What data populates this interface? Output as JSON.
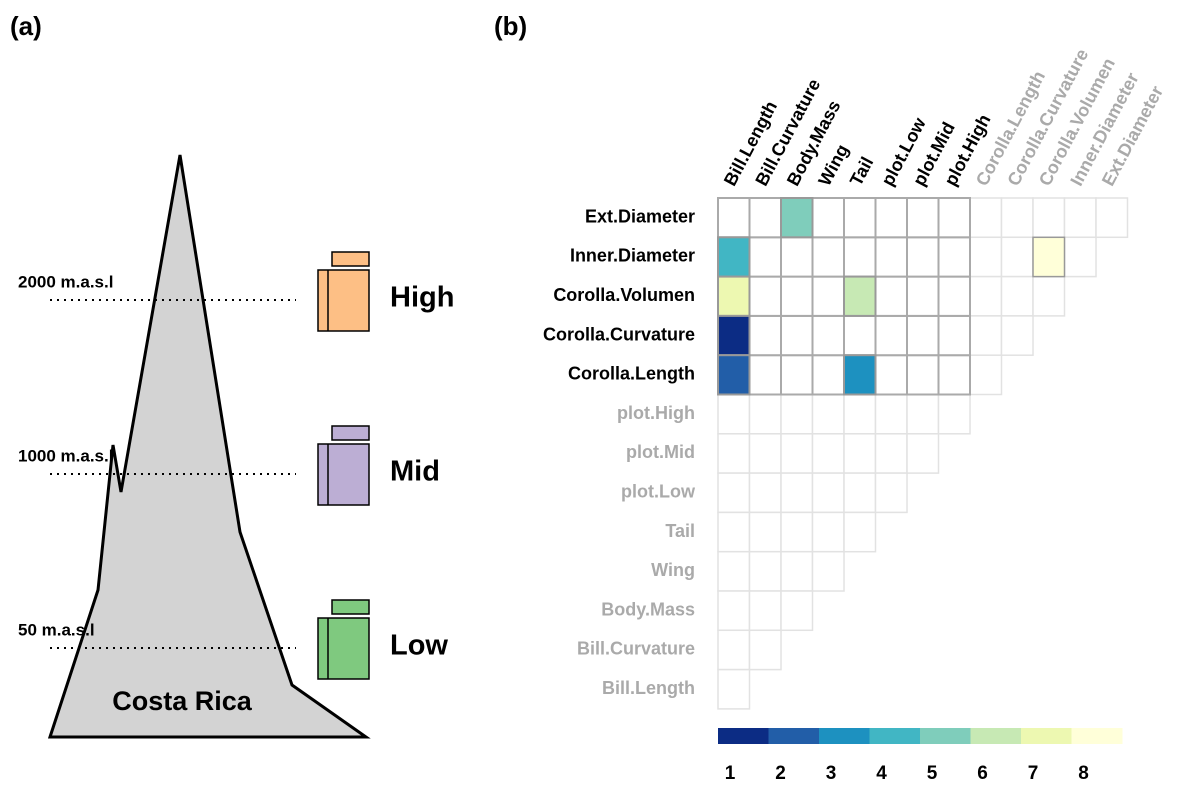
{
  "panel_a": {
    "label": "(a)",
    "region": "Costa Rica",
    "zones": [
      {
        "altitude": "2000 m.a.s.l",
        "name": "High",
        "color": "#fdbf85"
      },
      {
        "altitude": "1000 m.a.s.l",
        "name": "Mid",
        "color": "#bcaed4"
      },
      {
        "altitude": "50 m.a.s.l",
        "name": "Low",
        "color": "#7fc97f"
      }
    ]
  },
  "panel_b": {
    "label": "(b)",
    "columns": [
      "Bill.Length",
      "Bill.Curvature",
      "Body.Mass",
      "Wing",
      "Tail",
      "plot.Low",
      "plot.Mid",
      "plot.High",
      "Corolla.Length",
      "Corolla.Curvature",
      "Corolla.Volumen",
      "Inner.Diameter",
      "Ext.Diameter"
    ],
    "rows": [
      "Ext.Diameter",
      "Inner.Diameter",
      "Corolla.Volumen",
      "Corolla.Curvature",
      "Corolla.Length",
      "plot.High",
      "plot.Mid",
      "plot.Low",
      "Tail",
      "Wing",
      "Body.Mass",
      "Bill.Curvature",
      "Bill.Length"
    ],
    "values": [
      [
        null,
        null,
        5,
        null,
        null,
        null,
        null,
        null,
        null,
        null,
        null,
        null,
        null
      ],
      [
        4,
        null,
        null,
        null,
        null,
        null,
        null,
        null,
        null,
        null,
        8,
        null
      ],
      [
        7,
        null,
        null,
        null,
        6,
        null,
        null,
        null,
        null,
        null,
        null
      ],
      [
        1,
        null,
        null,
        null,
        null,
        null,
        null,
        null,
        null,
        null
      ],
      [
        2,
        null,
        null,
        null,
        3,
        null,
        null,
        null,
        null
      ],
      [
        null,
        null,
        null,
        null,
        null,
        null,
        null,
        null
      ],
      [
        null,
        null,
        null,
        null,
        null,
        null,
        null
      ],
      [
        null,
        null,
        null,
        null,
        null,
        null
      ],
      [
        null,
        null,
        null,
        null,
        null
      ],
      [
        null,
        null,
        null,
        null
      ],
      [
        null,
        null,
        null
      ],
      [
        null,
        null
      ],
      [
        null
      ]
    ],
    "legend": {
      "values": [
        1,
        2,
        3,
        4,
        5,
        6,
        7,
        8
      ],
      "colors": [
        "#0c2c84",
        "#225ea8",
        "#1d91c0",
        "#41b6c4",
        "#7fcdbb",
        "#c7e9b4",
        "#edf8b1",
        "#ffffd9"
      ]
    }
  }
}
